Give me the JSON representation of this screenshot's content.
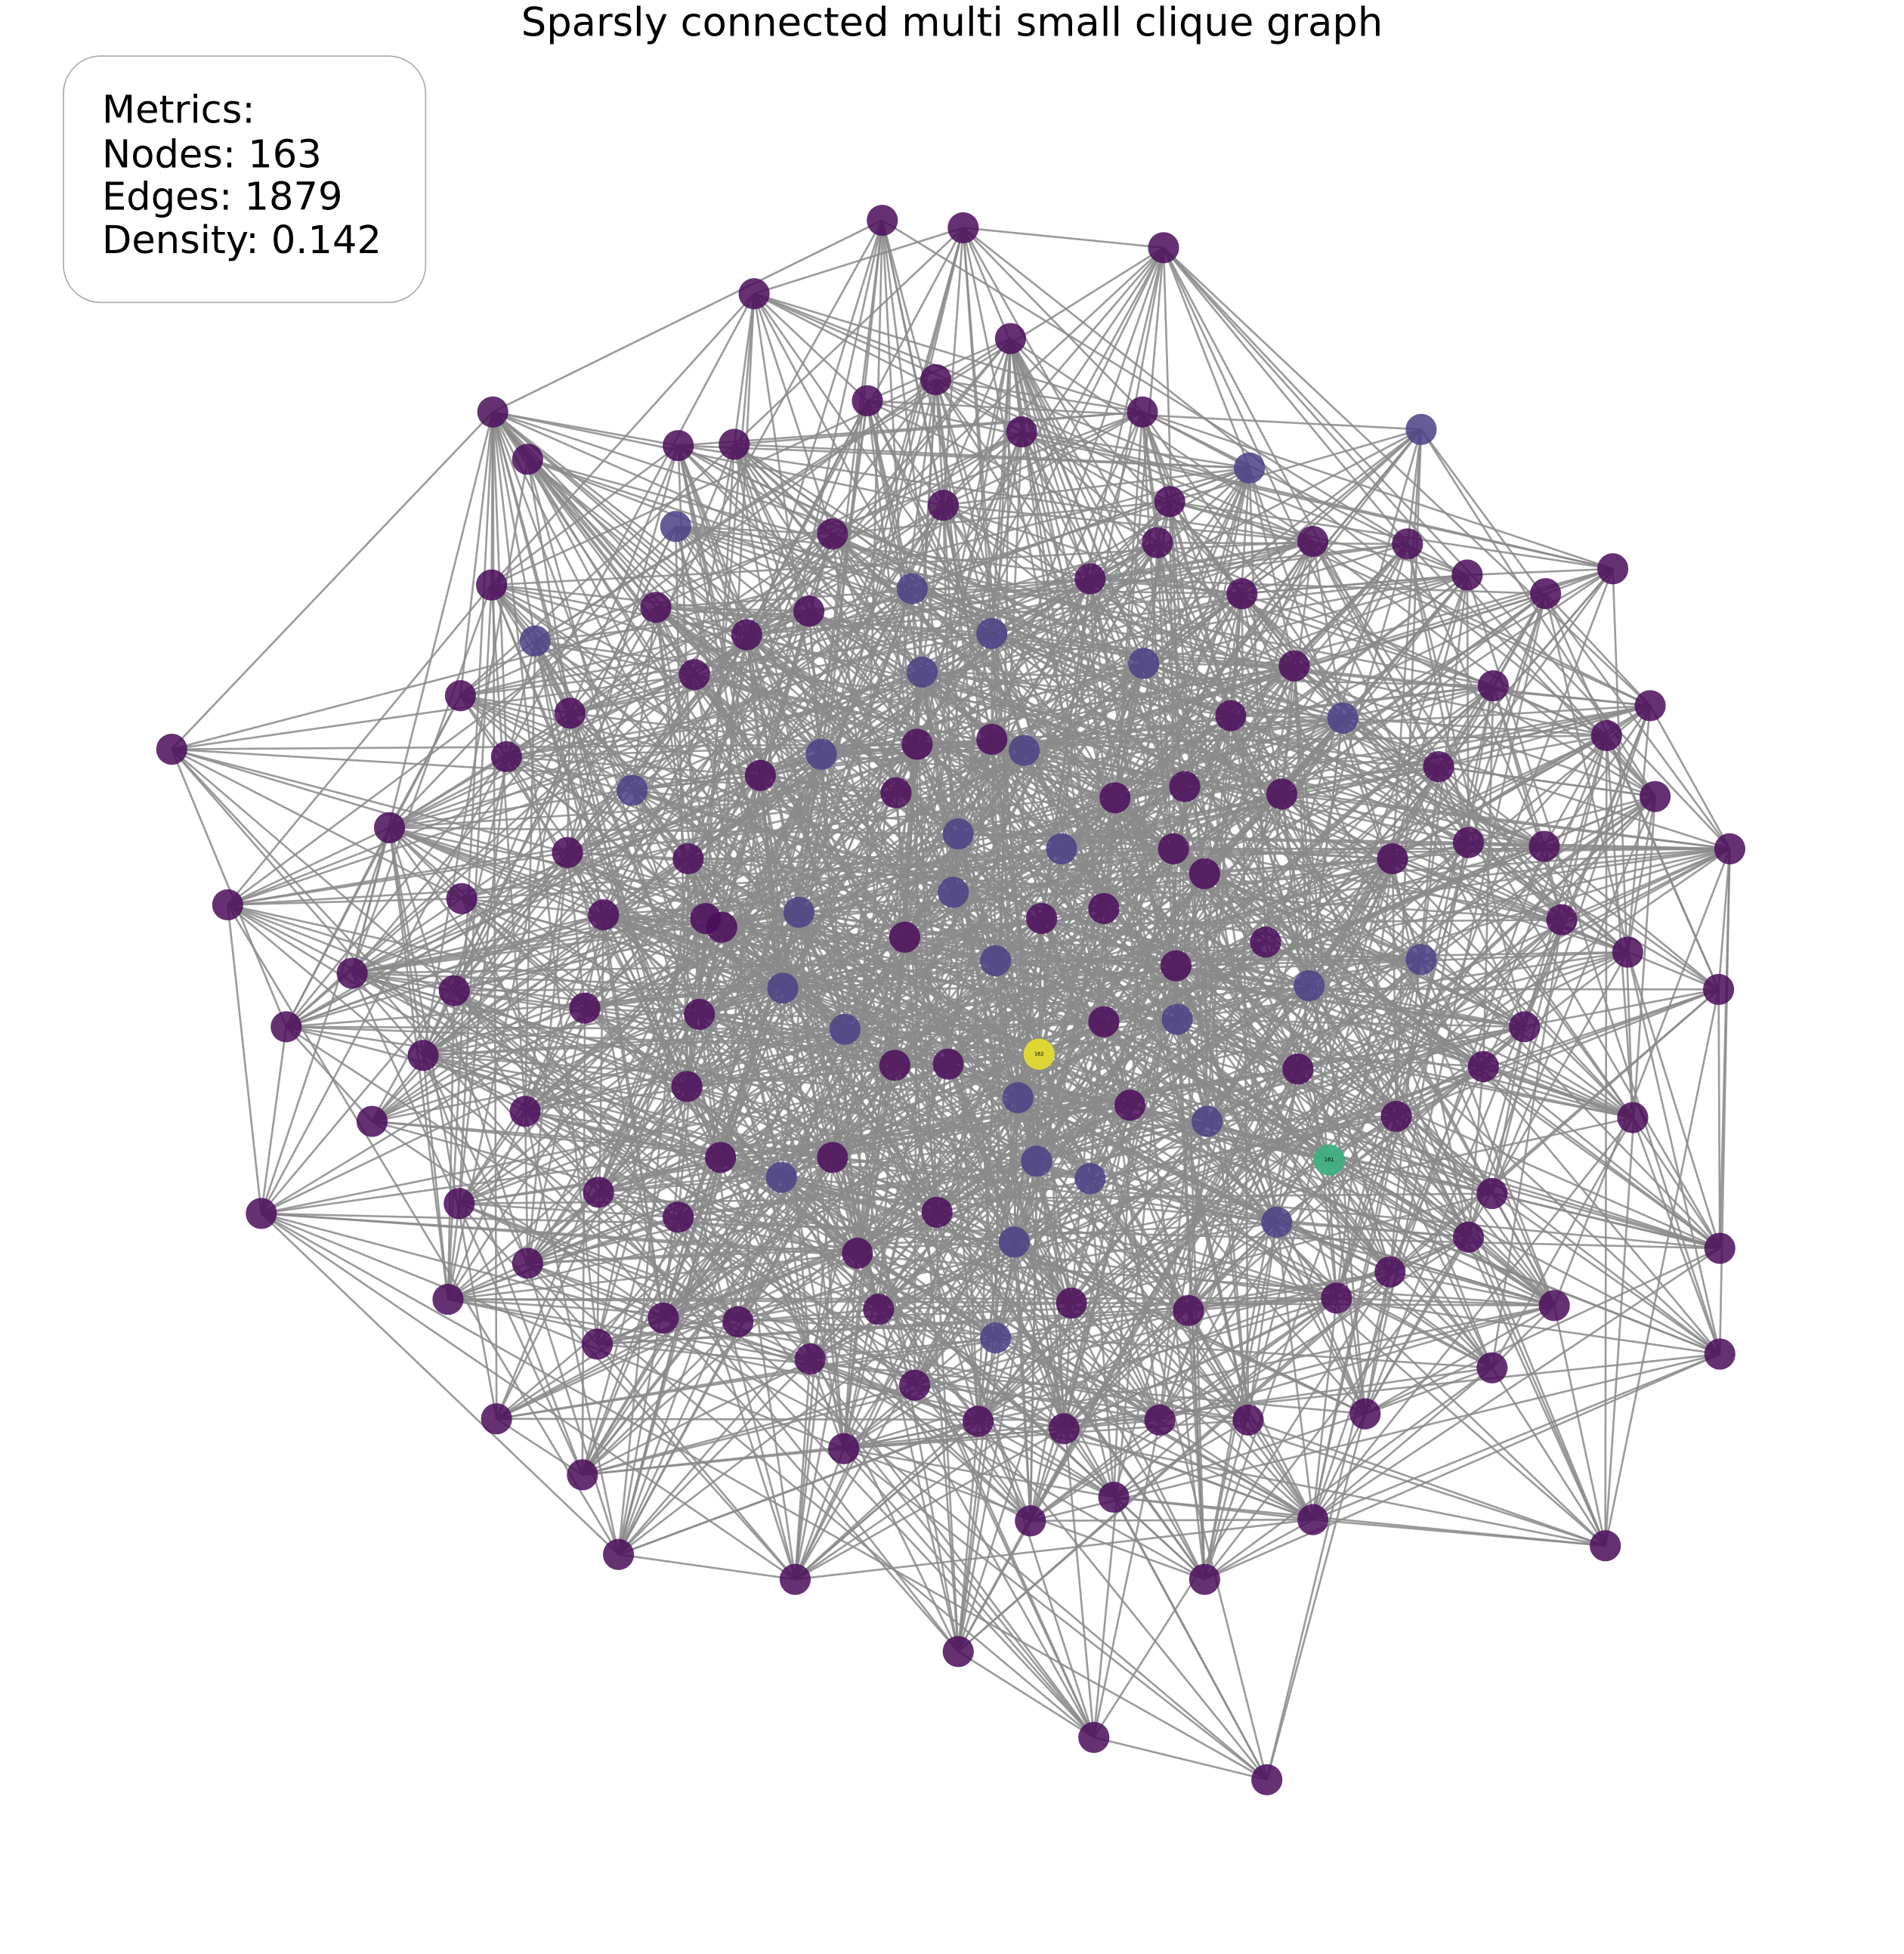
{
  "title": "Sparsly connected multi small clique graph",
  "metrics": {
    "heading": "Metrics:",
    "nodes": "Nodes: 163",
    "edges": "Edges: 1879",
    "density": "Density: 0.142"
  },
  "nodes": [
    {
      "label": "162"
    },
    {
      "label": "161"
    }
  ]
}
